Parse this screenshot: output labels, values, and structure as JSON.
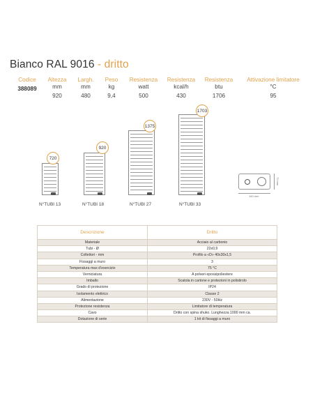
{
  "title": {
    "main": "Bianco RAL 9016",
    "sub": "- dritto"
  },
  "specs": [
    {
      "head": "Codice",
      "unit": "",
      "value": "388089"
    },
    {
      "head": "Altezza",
      "unit": "mm",
      "value": "920"
    },
    {
      "head": "Largh.",
      "unit": "mm",
      "value": "480"
    },
    {
      "head": "Peso",
      "unit": "kg",
      "value": "9,4"
    },
    {
      "head": "Resistenza",
      "unit": "watt",
      "value": "500"
    },
    {
      "head": "Resistenza",
      "unit": "kcal/h",
      "value": "430"
    },
    {
      "head": "Resistenza",
      "unit": "btu",
      "value": "1706"
    },
    {
      "head": "Attivazione limitatore",
      "unit": "°C",
      "value": "95"
    }
  ],
  "products": [
    {
      "height": "720",
      "tubi": "N°TUBI 13"
    },
    {
      "height": "920",
      "tubi": "N°TUBI 18"
    },
    {
      "height": "1375",
      "tubi": "N°TUBI 27"
    },
    {
      "height": "1703",
      "tubi": "N°TUBI 33"
    }
  ],
  "thermostat": {
    "height_label": "70 mm",
    "width_label": "160 mm"
  },
  "table": {
    "head_desc": "Descrizione",
    "head_val": "Dritto",
    "rows": [
      {
        "desc": "Materiale",
        "val": "Acciaio al carbonio"
      },
      {
        "desc": "Tubi - Ø",
        "val": "22x0,9"
      },
      {
        "desc": "Collettori - mm",
        "val": "Profilo a «D» 40x30x1,5"
      },
      {
        "desc": "Fissaggi a muro",
        "val": "3"
      },
      {
        "desc": "Temperatura max d'esercizio",
        "val": "75 °C"
      },
      {
        "desc": "Verniciatura",
        "val": "A polveri epossipoliestere"
      },
      {
        "desc": "Imballo",
        "val": "Scatola in cartone e protezioni in polistirolo"
      },
      {
        "desc": "Grado di protezione",
        "val": "IP24"
      },
      {
        "desc": "Isolamento elettrico",
        "val": "Classe 2"
      },
      {
        "desc": "Alimentazione",
        "val": "230V - 50Hz"
      },
      {
        "desc": "Protezione resistenza",
        "val": "Limitatore di temperatura"
      },
      {
        "desc": "Cavo",
        "val": "Dritto con spina shuko. Lunghezza 1000 mm ca."
      },
      {
        "desc": "Dotazione di serie",
        "val": "1 kit di fissaggi a muro"
      }
    ]
  },
  "colors": {
    "accent": "#e2a24c",
    "text": "#3a3a3a",
    "row_shade": "#ece7e0",
    "border": "#d8d0c0"
  }
}
